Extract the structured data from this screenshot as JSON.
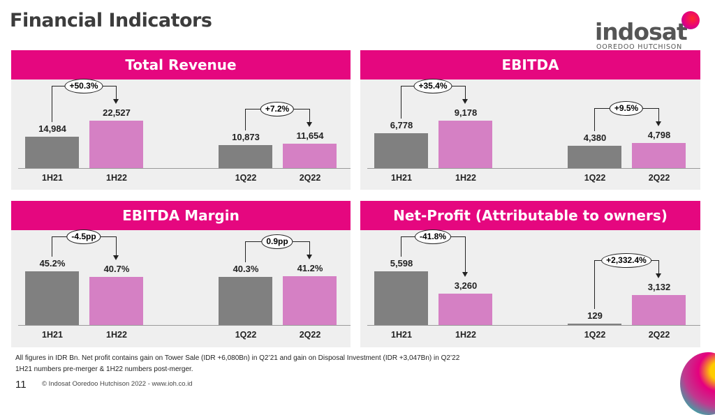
{
  "title": "Financial Indicators",
  "logo": {
    "word": "indosat",
    "sub": "OOREDOO HUTCHISON"
  },
  "colors": {
    "header": "#e5077f",
    "prior_bar": "#808080",
    "current_bar": "#d580c4",
    "panel_bg": "#efefef"
  },
  "chart_data": [
    {
      "type": "bar",
      "title": "Total Revenue",
      "categories": [
        "1H21",
        "1H22",
        "1Q22",
        "2Q22"
      ],
      "values": [
        14984,
        22527,
        10873,
        11654
      ],
      "labels": [
        "14,984",
        "22,527",
        "10,873",
        "11,654"
      ],
      "changes": [
        "+50.3%",
        "+7.2%"
      ]
    },
    {
      "type": "bar",
      "title": "EBITDA",
      "categories": [
        "1H21",
        "1H22",
        "1Q22",
        "2Q22"
      ],
      "values": [
        6778,
        9178,
        4380,
        4798
      ],
      "labels": [
        "6,778",
        "9,178",
        "4,380",
        "4,798"
      ],
      "changes": [
        "+35.4%",
        "+9.5%"
      ]
    },
    {
      "type": "bar",
      "title": "EBITDA Margin",
      "categories": [
        "1H21",
        "1H22",
        "1Q22",
        "2Q22"
      ],
      "values": [
        45.2,
        40.7,
        40.3,
        41.2
      ],
      "labels": [
        "45.2%",
        "40.7%",
        "40.3%",
        "41.2%"
      ],
      "changes": [
        "-4.5pp",
        "0.9pp"
      ]
    },
    {
      "type": "bar",
      "title": "Net-Profit (Attributable to owners)",
      "categories": [
        "1H21",
        "1H22",
        "1Q22",
        "2Q22"
      ],
      "values": [
        5598,
        3260,
        129,
        3132
      ],
      "labels": [
        "5,598",
        "3,260",
        "129",
        "3,132"
      ],
      "changes": [
        "-41.8%",
        "+2,332.4%"
      ]
    }
  ],
  "footnotes": [
    "All figures in IDR Bn. Net profit contains gain on Tower Sale (IDR +6,080Bn) in Q2’21 and gain on Disposal Investment (IDR +3,047Bn) in Q2’22",
    "1H21 numbers pre-merger & 1H22 numbers post-merger."
  ],
  "page_number": "11",
  "copyright": "© Indosat Ooredoo Hutchison 2022 - www.ioh.co.id"
}
